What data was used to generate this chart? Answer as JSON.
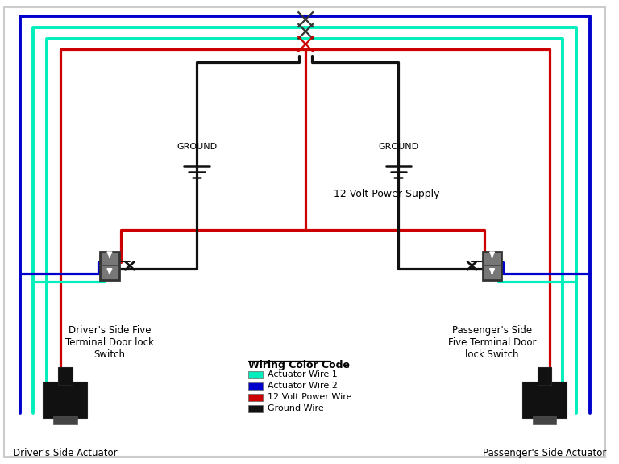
{
  "bg_color": "#ffffff",
  "cyan": "#00eebb",
  "blue": "#0000cc",
  "red": "#cc0000",
  "black": "#111111",
  "dark": "#333333",
  "legend_title": "Wiring Color Code",
  "legend_items": [
    {
      "color": "#00eebb",
      "label": "Actuator Wire 1"
    },
    {
      "color": "#0000cc",
      "label": "Actuator Wire 2"
    },
    {
      "color": "#cc0000",
      "label": "12 Volt Power Wire"
    },
    {
      "color": "#111111",
      "label": "Ground Wire"
    }
  ],
  "label_driver_switch": "Driver's Side Five\nTerminal Door lock\nSwitch",
  "label_passenger_switch": "Passenger's Side\nFive Terminal Door\nlock Switch",
  "label_driver_actuator": "Driver's Side Actuator",
  "label_passenger_actuator": "Passenger's Side Actuator",
  "label_ground": "GROUND",
  "label_power": "12 Volt Power Supply"
}
